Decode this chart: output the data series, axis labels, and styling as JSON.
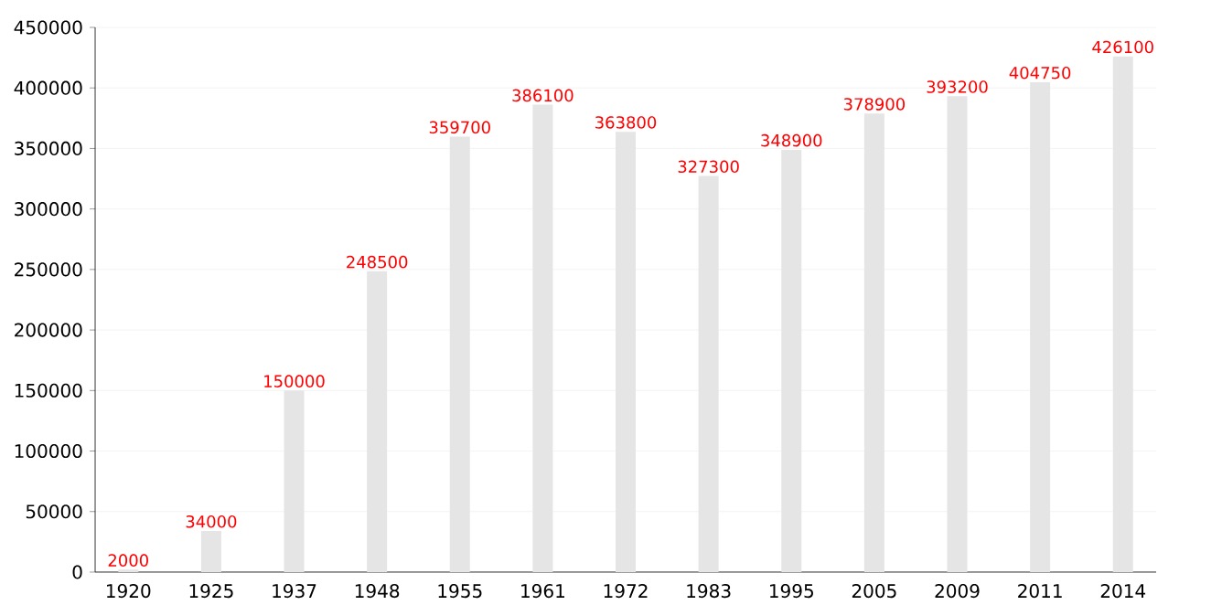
{
  "chart_data": {
    "type": "bar",
    "categories": [
      "1920",
      "1925",
      "1937",
      "1948",
      "1955",
      "1961",
      "1972",
      "1983",
      "1995",
      "2005",
      "2009",
      "2011",
      "2014"
    ],
    "values": [
      2000,
      34000,
      150000,
      248500,
      359700,
      386100,
      363800,
      327300,
      348900,
      378900,
      393200,
      404750,
      426100
    ],
    "color": "#e5e5e5",
    "ylim": [
      0,
      450000
    ],
    "yticks": [
      0,
      50000,
      100000,
      150000,
      200000,
      250000,
      300000,
      350000,
      400000,
      450000
    ],
    "grid": "y",
    "data_labels": true
  }
}
